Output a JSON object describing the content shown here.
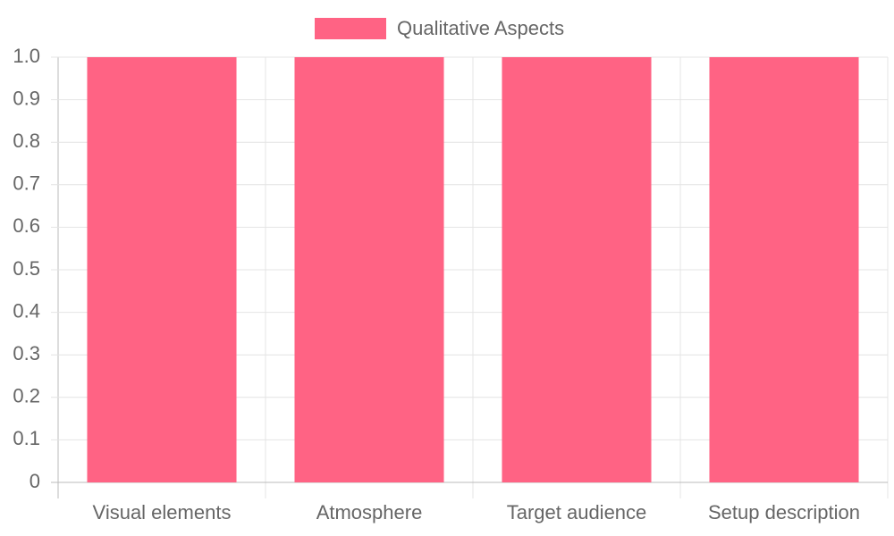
{
  "chart_data": {
    "type": "bar",
    "categories": [
      "Visual elements",
      "Atmosphere",
      "Target audience",
      "Setup description"
    ],
    "series": [
      {
        "name": "Qualitative Aspects",
        "color": "#ff6384",
        "values": [
          1,
          1,
          1,
          1
        ]
      }
    ],
    "ylim": [
      0,
      1
    ],
    "yticks": [
      0,
      0.1,
      0.2,
      0.3,
      0.4,
      0.5,
      0.6,
      0.7,
      0.8,
      0.9,
      {
        "value": 1,
        "label": "1.0"
      }
    ],
    "grid": true,
    "legend": "top"
  }
}
